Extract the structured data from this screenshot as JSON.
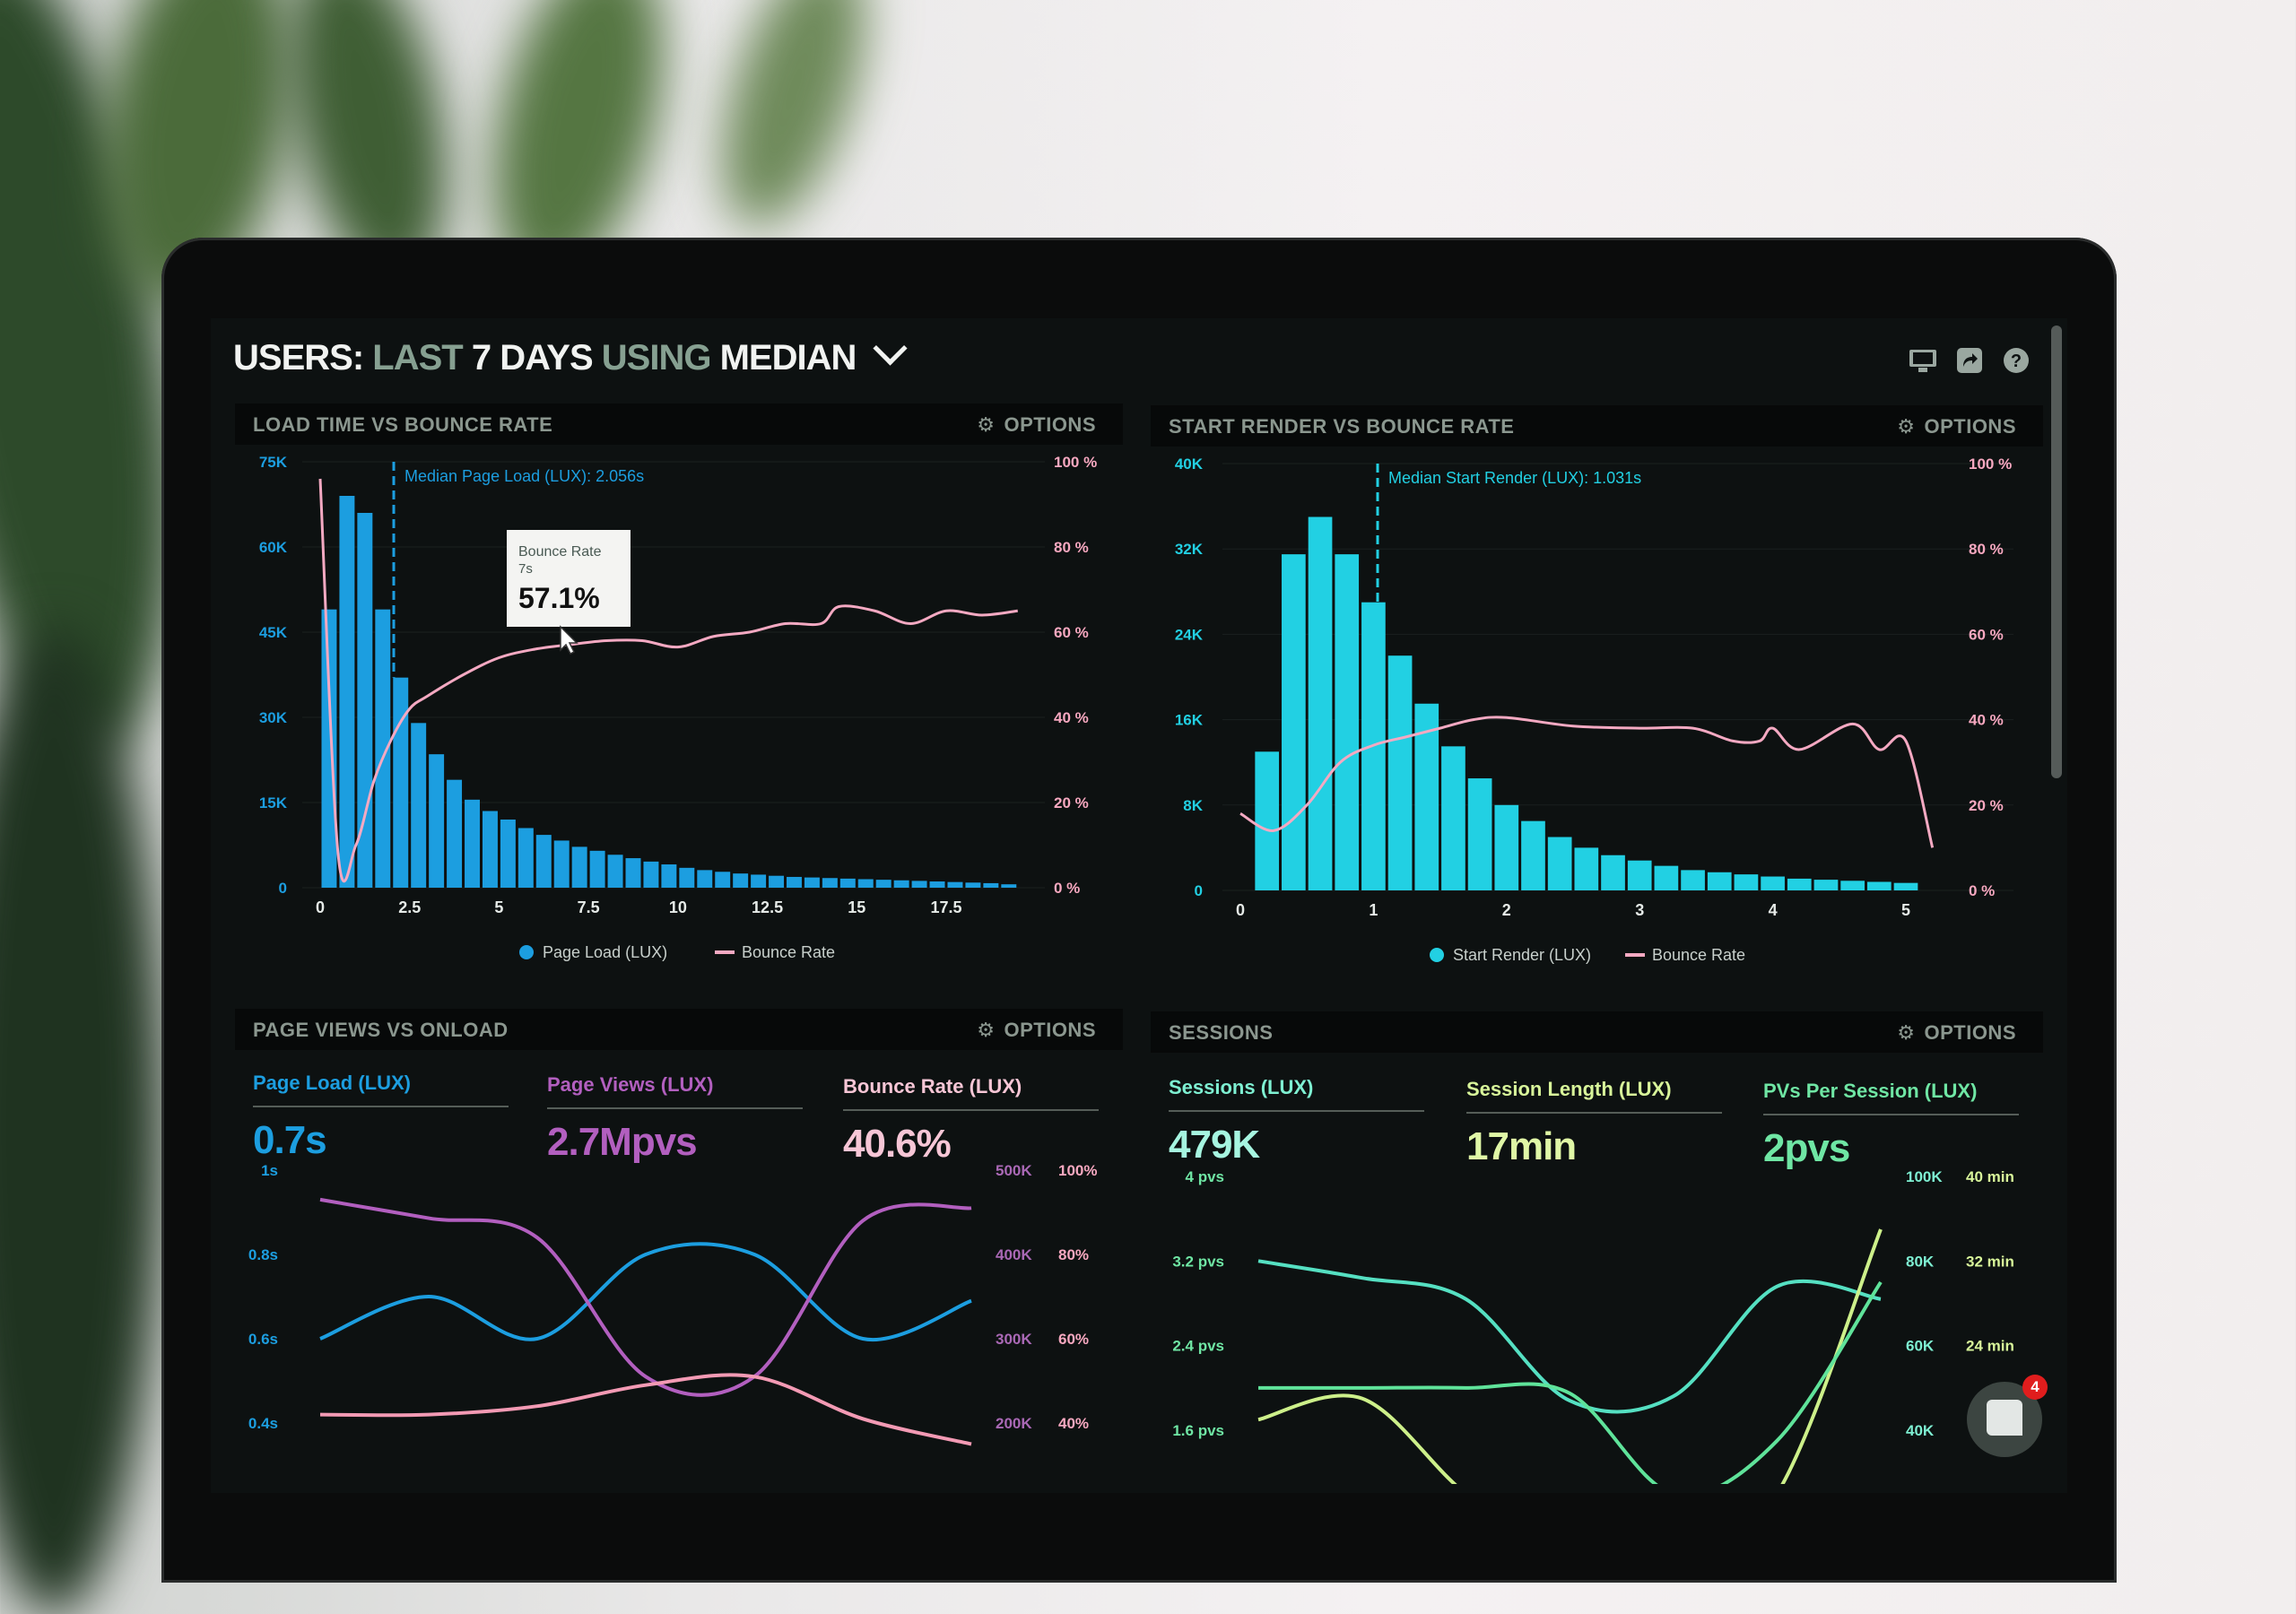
{
  "header": {
    "title_users": "USERS:",
    "title_last": "LAST",
    "title_days": "7 DAYS",
    "title_using": "USING",
    "title_median": "MEDIAN",
    "icons": [
      "monitor-icon",
      "share-icon",
      "help-icon"
    ]
  },
  "colors": {
    "page_load": "#1c9ee0",
    "start_render": "#22d0e3",
    "bounce": "#f4a9c2",
    "page_views": "#b25fbf",
    "sessions": "#55e0c2",
    "session_length": "#cdf08a",
    "pvs_per_session": "#5fe39a"
  },
  "options_label": "OPTIONS",
  "panels": {
    "load_time": {
      "title": "LOAD TIME VS BOUNCE RATE",
      "median_label": "Median Page Load (LUX): 2.056s",
      "tooltip": {
        "title": "Bounce Rate",
        "sub": "7s",
        "value": "57.1%"
      },
      "legend": [
        "Page Load (LUX)",
        "Bounce Rate"
      ]
    },
    "start_render": {
      "title": "START RENDER VS BOUNCE RATE",
      "median_label": "Median Start Render (LUX): 1.031s",
      "legend": [
        "Start Render (LUX)",
        "Bounce Rate"
      ]
    },
    "page_views": {
      "title": "PAGE VIEWS VS ONLOAD",
      "stats": [
        {
          "label": "Page Load (LUX)",
          "value": "0.7s"
        },
        {
          "label": "Page Views (LUX)",
          "value": "2.7Mpvs"
        },
        {
          "label": "Bounce Rate (LUX)",
          "value": "40.6%"
        }
      ]
    },
    "sessions": {
      "title": "SESSIONS",
      "stats": [
        {
          "label": "Sessions (LUX)",
          "value": "479K"
        },
        {
          "label": "Session Length (LUX)",
          "value": "17min"
        },
        {
          "label": "PVs Per Session (LUX)",
          "value": "2pvs"
        }
      ]
    }
  },
  "chat": {
    "badge": "4"
  },
  "chart_data": [
    {
      "type": "bar",
      "title": "LOAD TIME VS BOUNCE RATE",
      "x_ticks": [
        "0",
        "2.5",
        "5",
        "7.5",
        "10",
        "12.5",
        "15",
        "17.5"
      ],
      "x_tick_values": [
        0,
        2.5,
        5,
        7.5,
        10,
        12.5,
        15,
        17.5
      ],
      "xlim": [
        0,
        19.5
      ],
      "bin_width": 0.5,
      "y_ticks": [
        "0",
        "15K",
        "30K",
        "45K",
        "60K",
        "75K"
      ],
      "ylim": [
        0,
        75000
      ],
      "y2_ticks": [
        "0 %",
        "20 %",
        "40 %",
        "60 %",
        "80 %",
        "100 %"
      ],
      "y2lim": [
        0,
        100
      ],
      "median": 2.056,
      "series": [
        {
          "name": "Page Load (LUX)",
          "type": "bar",
          "values": [
            49000,
            69000,
            66000,
            49000,
            37000,
            29000,
            23500,
            19000,
            15500,
            13500,
            12000,
            10500,
            9300,
            8300,
            7200,
            6500,
            5800,
            5200,
            4600,
            4100,
            3500,
            3100,
            2800,
            2500,
            2300,
            2100,
            1900,
            1800,
            1700,
            1600,
            1500,
            1400,
            1300,
            1200,
            1100,
            1000,
            900,
            800,
            600
          ]
        },
        {
          "name": "Bounce Rate",
          "type": "line",
          "axis": "right",
          "x": [
            0,
            0.5,
            1,
            1.5,
            2,
            2.5,
            3,
            4,
            5,
            6,
            7,
            8,
            9,
            10,
            11,
            12,
            13,
            14,
            14.5,
            15.5,
            16.5,
            17.5,
            18.5,
            19.5
          ],
          "values": [
            96,
            8,
            10,
            25,
            35,
            42,
            45,
            50,
            54,
            56,
            57.1,
            58,
            58,
            56.5,
            59,
            60,
            62,
            62,
            66,
            65,
            62,
            65,
            64,
            65
          ]
        }
      ],
      "legend": "bottom"
    },
    {
      "type": "bar",
      "title": "START RENDER VS BOUNCE RATE",
      "x_ticks": [
        "0",
        "1",
        "2",
        "3",
        "4",
        "5"
      ],
      "x_tick_values": [
        0,
        1,
        2,
        3,
        4,
        5
      ],
      "xlim": [
        0,
        5.2
      ],
      "bin_width": 0.2,
      "y_ticks": [
        "0",
        "8K",
        "16K",
        "24K",
        "32K",
        "40K"
      ],
      "ylim": [
        0,
        40000
      ],
      "y2_ticks": [
        "0 %",
        "20 %",
        "40 %",
        "60 %",
        "80 %",
        "100 %"
      ],
      "y2lim": [
        0,
        100
      ],
      "median": 1.031,
      "series": [
        {
          "name": "Start Render (LUX)",
          "type": "bar",
          "values": [
            13000,
            31500,
            35000,
            31500,
            27000,
            22000,
            17500,
            13500,
            10500,
            8000,
            6500,
            5000,
            4000,
            3300,
            2800,
            2300,
            1900,
            1700,
            1500,
            1300,
            1100,
            1000,
            900,
            800,
            700
          ]
        },
        {
          "name": "Bounce Rate",
          "type": "line",
          "axis": "right",
          "x": [
            0,
            0.25,
            0.5,
            0.75,
            1,
            1.25,
            1.5,
            1.75,
            2,
            2.5,
            3,
            3.4,
            3.7,
            3.9,
            4,
            4.2,
            4.6,
            4.8,
            5,
            5.2
          ],
          "values": [
            18,
            14,
            20,
            30,
            34,
            36,
            38,
            40,
            40.5,
            38.5,
            38,
            38,
            35,
            35,
            38,
            33,
            39,
            33,
            35,
            10
          ]
        }
      ],
      "legend": "bottom"
    },
    {
      "type": "line",
      "title": "PAGE VIEWS VS ONLOAD",
      "y_ticks": [
        "0.4s",
        "0.6s",
        "0.8s",
        "1s"
      ],
      "ylim": [
        0.4,
        1.0
      ],
      "y2_ticks": [
        "200K",
        "300K",
        "400K",
        "500K"
      ],
      "y2lim": [
        200000,
        500000
      ],
      "y3_ticks": [
        "40%",
        "60%",
        "80%",
        "100%"
      ],
      "y3lim": [
        40,
        100
      ],
      "x": [
        0,
        1,
        2,
        3,
        4,
        5,
        6
      ],
      "series": [
        {
          "name": "Page Load (LUX)",
          "axis": "left",
          "values": [
            0.6,
            0.7,
            0.6,
            0.8,
            0.8,
            0.6,
            0.69
          ]
        },
        {
          "name": "Page Views (LUX)",
          "axis": "right1",
          "values": [
            465000,
            443000,
            420000,
            255000,
            255000,
            440000,
            455000
          ]
        },
        {
          "name": "Bounce Rate (LUX)",
          "axis": "right2",
          "values": [
            42,
            42,
            44,
            49,
            51,
            41,
            35
          ]
        }
      ]
    },
    {
      "type": "line",
      "title": "SESSIONS",
      "y_ticks": [
        "1.6 pvs",
        "2.4 pvs",
        "3.2 pvs",
        "4 pvs"
      ],
      "ylim": [
        1.6,
        4.0
      ],
      "y2_ticks": [
        "40K",
        "60K",
        "80K",
        "100K"
      ],
      "y2lim": [
        40000,
        100000
      ],
      "y3_ticks": [
        "24 min",
        "32 min",
        "40 min"
      ],
      "y3lim": [
        16,
        40
      ],
      "x": [
        0,
        1,
        2,
        3,
        4,
        5,
        6
      ],
      "series": [
        {
          "name": "Sessions (LUX)",
          "axis": "right1",
          "values": [
            80000,
            76000,
            71000,
            47000,
            48000,
            74000,
            71000
          ]
        },
        {
          "name": "Session Length (LUX)",
          "axis": "right2",
          "values": [
            17,
            19,
            10,
            4,
            4,
            10,
            35
          ]
        },
        {
          "name": "PVs Per Session (LUX)",
          "axis": "left",
          "values": [
            2.0,
            2.0,
            2.0,
            1.95,
            1.0,
            1.5,
            3.0
          ]
        }
      ]
    }
  ]
}
